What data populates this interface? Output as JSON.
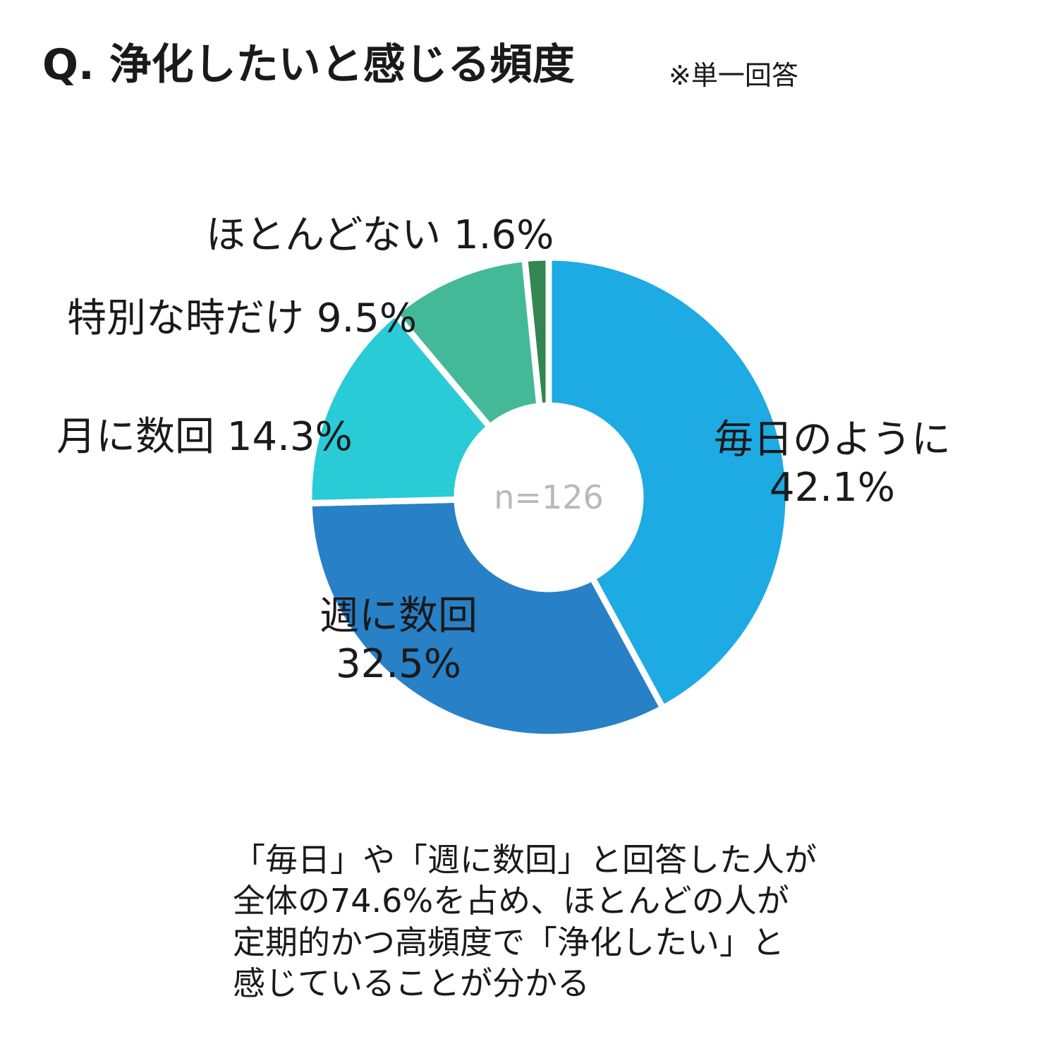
{
  "title": "Q. 浄化したいと感じる頻度",
  "note": "※単一回答",
  "summary": {
    "lines": [
      "「毎日」や「週に数回」と回答した人が",
      "全体の74.6%を占め、ほとんどの人が",
      "定期的かつ高頻度で「浄化したい」と",
      "感じていることが分かる"
    ]
  },
  "chart_data": {
    "type": "pie",
    "center_text": "n=126",
    "slices": [
      {
        "label": "毎日のように",
        "value": 42.1,
        "value_label": "42.1%",
        "color": "#1eaae3"
      },
      {
        "label": "週に数回",
        "value": 32.5,
        "value_label": "32.5%",
        "color": "#2880c6"
      },
      {
        "label": "月に数回",
        "value": 14.3,
        "value_label": "14.3%",
        "color": "#28cbd6"
      },
      {
        "label": "特別な時だけ",
        "value": 9.5,
        "value_label": "9.5%",
        "color": "#44b998"
      },
      {
        "label": "ほとんどない",
        "value": 1.6,
        "value_label": "1.6%",
        "color": "#338552"
      }
    ]
  }
}
